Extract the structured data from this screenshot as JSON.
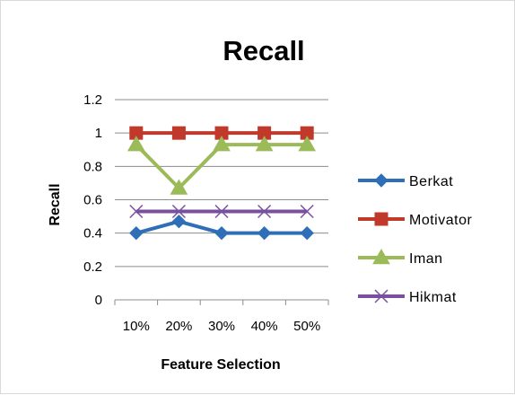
{
  "chart_data": {
    "type": "line",
    "title": "Recall",
    "xlabel": "Feature Selection",
    "ylabel": "Recall",
    "categories": [
      "10%",
      "20%",
      "30%",
      "40%",
      "50%"
    ],
    "ylim": [
      0,
      1.2
    ],
    "yticks": [
      "0",
      "0.2",
      "0.4",
      "0.6",
      "0.8",
      "1",
      "1.2"
    ],
    "grid": true,
    "legend_position": "right",
    "series": [
      {
        "name": "Berkat",
        "values": [
          0.4,
          0.47,
          0.4,
          0.4,
          0.4
        ],
        "color": "#2e6fb7",
        "marker": "diamond"
      },
      {
        "name": "Motivator",
        "values": [
          1,
          1,
          1,
          1,
          1
        ],
        "color": "#c0392b",
        "marker": "square"
      },
      {
        "name": "Iman",
        "values": [
          0.93,
          0.67,
          0.93,
          0.93,
          0.93
        ],
        "color": "#9bbb59",
        "marker": "triangle"
      },
      {
        "name": "Hikmat",
        "values": [
          0.53,
          0.53,
          0.53,
          0.53,
          0.53
        ],
        "color": "#7a4fa0",
        "marker": "x"
      }
    ]
  }
}
